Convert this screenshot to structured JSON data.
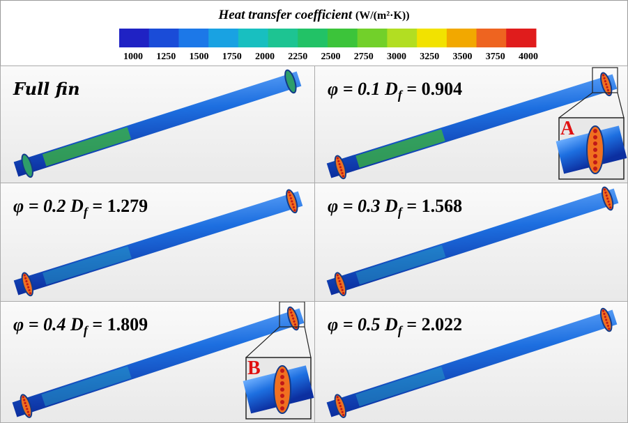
{
  "legend": {
    "title": "Heat transfer coefficient",
    "unit": "(W/(m²·K))",
    "colors": [
      "#1f22c4",
      "#1a4cd8",
      "#1c78e8",
      "#19a2e2",
      "#18bfc0",
      "#1dc492",
      "#22c266",
      "#3cc43a",
      "#72d02a",
      "#b2de22",
      "#f2e200",
      "#f2a800",
      "#ee6420",
      "#e01c1c"
    ],
    "ticks": [
      1000,
      1250,
      1500,
      1750,
      2000,
      2250,
      2500,
      2750,
      3000,
      3250,
      3500,
      3750,
      4000
    ]
  },
  "panels": [
    {
      "label": "Full fin"
    },
    {
      "phi": "φ = 0.1",
      "d": "D",
      "sub": "f",
      "value": "= 0.904",
      "inset": "A"
    },
    {
      "phi": "φ = 0.2",
      "d": "D",
      "sub": "f",
      "value": "= 1.279"
    },
    {
      "phi": "φ = 0.3",
      "d": "D",
      "sub": "f",
      "value": "= 1.568"
    },
    {
      "phi": "φ = 0.4",
      "d": "D",
      "sub": "f",
      "value": "= 1.809",
      "inset": "B"
    },
    {
      "phi": "φ = 0.5",
      "d": "D",
      "sub": "f",
      "value": "= 2.022"
    }
  ]
}
